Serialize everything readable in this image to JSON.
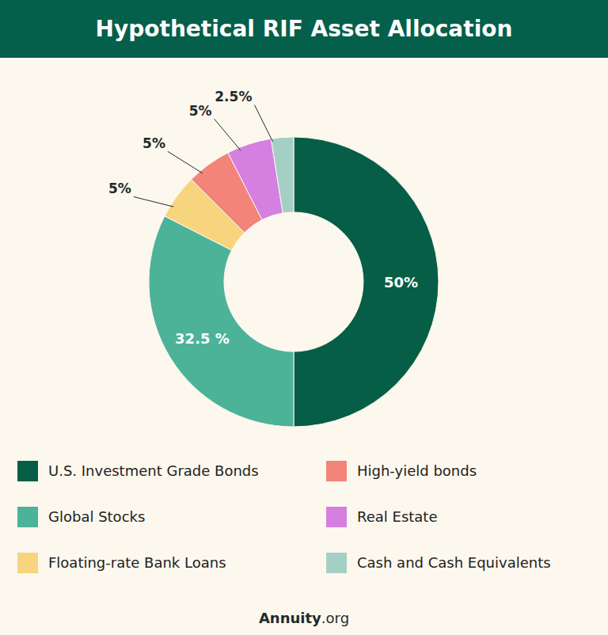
{
  "chart_data": {
    "type": "donut",
    "title": "Hypothetical RIF Asset Allocation",
    "categories": [
      "U.S. Investment Grade Bonds",
      "Global Stocks",
      "Floating-rate Bank Loans",
      "High-yield bonds",
      "Real Estate",
      "Cash and Cash Equivalents"
    ],
    "values": [
      50,
      32.5,
      5,
      5,
      5,
      2.5
    ],
    "value_labels": [
      "50%",
      "32.5 %",
      "5%",
      "5%",
      "5%",
      "2.5%"
    ],
    "colors": [
      "#055e45",
      "#4cb398",
      "#f7d57e",
      "#f2847a",
      "#d57fe0",
      "#a5cfc4"
    ],
    "data_labels": true,
    "legend": "bottom",
    "source": "Annuity.org"
  }
}
